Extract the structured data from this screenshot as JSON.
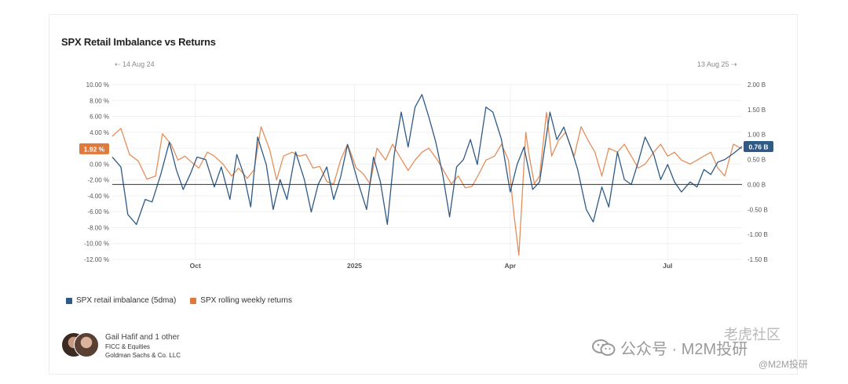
{
  "title": "SPX Retail Imbalance vs Returns",
  "range": {
    "start": "14 Aug 24",
    "end": "13 Aug 25"
  },
  "chart_data": {
    "type": "line",
    "title": "SPX Retail Imbalance vs Returns",
    "x_range": [
      "2024-08-14",
      "2025-08-13"
    ],
    "x_ticks": [
      "Oct",
      "2025",
      "Apr",
      "Jul"
    ],
    "y_left": {
      "ticks": [
        "10.00 %",
        "8.00 %",
        "6.00 %",
        "4.00 %",
        "2.00 %",
        "0.00 %",
        "-2.00 %",
        "-4.00 %",
        "-6.00 %",
        "-8.00 %",
        "-10.00 %",
        "-12.00 %"
      ],
      "ylim": [
        -12,
        10
      ]
    },
    "y_right": {
      "ticks": [
        "2.00 B",
        "1.50 B",
        "1.00 B",
        "0.50 B",
        "0.00 B",
        "-0.50 B",
        "-1.00 B",
        "-1.50 B"
      ],
      "ylim": [
        -1.5,
        2.0
      ]
    },
    "zero_line": "0.00 B",
    "series": [
      {
        "name": "SPX retail imbalance (5dma)",
        "color": "#2f5a86",
        "axis": "right",
        "last_label": "0.76 B",
        "points": [
          [
            "2024-08-14",
            0.55
          ],
          [
            "2024-08-19",
            0.35
          ],
          [
            "2024-08-23",
            -0.6
          ],
          [
            "2024-08-28",
            -0.8
          ],
          [
            "2024-09-02",
            -0.3
          ],
          [
            "2024-09-06",
            -0.35
          ],
          [
            "2024-09-11",
            0.2
          ],
          [
            "2024-09-16",
            0.85
          ],
          [
            "2024-09-20",
            0.3
          ],
          [
            "2024-09-24",
            -0.1
          ],
          [
            "2024-09-28",
            0.2
          ],
          [
            "2024-10-02",
            0.55
          ],
          [
            "2024-10-07",
            0.5
          ],
          [
            "2024-10-12",
            -0.05
          ],
          [
            "2024-10-16",
            0.35
          ],
          [
            "2024-10-21",
            -0.3
          ],
          [
            "2024-10-25",
            0.6
          ],
          [
            "2024-10-29",
            0.2
          ],
          [
            "2024-11-02",
            -0.45
          ],
          [
            "2024-11-06",
            0.95
          ],
          [
            "2024-11-11",
            0.4
          ],
          [
            "2024-11-15",
            -0.5
          ],
          [
            "2024-11-19",
            0.1
          ],
          [
            "2024-11-23",
            -0.3
          ],
          [
            "2024-11-28",
            0.65
          ],
          [
            "2024-12-03",
            0.1
          ],
          [
            "2024-12-07",
            -0.55
          ],
          [
            "2024-12-11",
            0.0
          ],
          [
            "2024-12-16",
            0.35
          ],
          [
            "2024-12-20",
            -0.3
          ],
          [
            "2024-12-24",
            0.15
          ],
          [
            "2024-12-28",
            0.8
          ],
          [
            "2025-01-03",
            0.05
          ],
          [
            "2025-01-08",
            -0.5
          ],
          [
            "2025-01-12",
            0.55
          ],
          [
            "2025-01-16",
            0.05
          ],
          [
            "2025-01-20",
            -0.8
          ],
          [
            "2025-01-24",
            0.6
          ],
          [
            "2025-01-28",
            1.45
          ],
          [
            "2025-02-01",
            0.75
          ],
          [
            "2025-02-05",
            1.55
          ],
          [
            "2025-02-09",
            1.8
          ],
          [
            "2025-02-13",
            1.35
          ],
          [
            "2025-02-17",
            0.85
          ],
          [
            "2025-02-21",
            0.2
          ],
          [
            "2025-02-25",
            -0.65
          ],
          [
            "2025-03-01",
            0.35
          ],
          [
            "2025-03-05",
            0.5
          ],
          [
            "2025-03-09",
            0.9
          ],
          [
            "2025-03-13",
            0.4
          ],
          [
            "2025-03-18",
            1.55
          ],
          [
            "2025-03-22",
            1.45
          ],
          [
            "2025-03-27",
            0.9
          ],
          [
            "2025-04-01",
            -0.15
          ],
          [
            "2025-04-05",
            0.4
          ],
          [
            "2025-04-09",
            0.75
          ],
          [
            "2025-04-14",
            -0.1
          ],
          [
            "2025-04-18",
            0.05
          ],
          [
            "2025-04-24",
            1.45
          ],
          [
            "2025-04-28",
            0.9
          ],
          [
            "2025-05-02",
            1.15
          ],
          [
            "2025-05-06",
            0.75
          ],
          [
            "2025-05-10",
            0.3
          ],
          [
            "2025-05-15",
            -0.5
          ],
          [
            "2025-05-19",
            -0.75
          ],
          [
            "2025-05-24",
            -0.05
          ],
          [
            "2025-05-28",
            -0.45
          ],
          [
            "2025-06-02",
            0.65
          ],
          [
            "2025-06-06",
            0.1
          ],
          [
            "2025-06-10",
            0.0
          ],
          [
            "2025-06-14",
            0.45
          ],
          [
            "2025-06-18",
            0.95
          ],
          [
            "2025-06-23",
            0.6
          ],
          [
            "2025-06-27",
            0.1
          ],
          [
            "2025-07-01",
            0.4
          ],
          [
            "2025-07-05",
            0.05
          ],
          [
            "2025-07-09",
            -0.15
          ],
          [
            "2025-07-14",
            0.05
          ],
          [
            "2025-07-18",
            -0.05
          ],
          [
            "2025-07-22",
            0.3
          ],
          [
            "2025-07-26",
            0.2
          ],
          [
            "2025-07-30",
            0.45
          ],
          [
            "2025-08-03",
            0.5
          ],
          [
            "2025-08-08",
            0.62
          ],
          [
            "2025-08-13",
            0.76
          ]
        ]
      },
      {
        "name": "SPX rolling weekly returns",
        "color": "#e07a3c",
        "axis": "left",
        "last_label": "1.92 %",
        "points": [
          [
            "2024-08-14",
            3.5
          ],
          [
            "2024-08-19",
            4.5
          ],
          [
            "2024-08-24",
            1.2
          ],
          [
            "2024-08-29",
            0.4
          ],
          [
            "2024-09-03",
            -1.9
          ],
          [
            "2024-09-08",
            -1.5
          ],
          [
            "2024-09-12",
            3.8
          ],
          [
            "2024-09-17",
            2.5
          ],
          [
            "2024-09-21",
            0.5
          ],
          [
            "2024-09-25",
            1.0
          ],
          [
            "2024-09-29",
            0.2
          ],
          [
            "2024-10-03",
            -0.5
          ],
          [
            "2024-10-08",
            1.5
          ],
          [
            "2024-10-12",
            1.0
          ],
          [
            "2024-10-17",
            0.0
          ],
          [
            "2024-10-22",
            -1.5
          ],
          [
            "2024-10-26",
            -0.5
          ],
          [
            "2024-10-31",
            -1.8
          ],
          [
            "2024-11-04",
            -0.7
          ],
          [
            "2024-11-08",
            4.7
          ],
          [
            "2024-11-13",
            1.8
          ],
          [
            "2024-11-17",
            -2.0
          ],
          [
            "2024-11-21",
            1.0
          ],
          [
            "2024-11-26",
            1.5
          ],
          [
            "2024-11-30",
            1.0
          ],
          [
            "2024-12-04",
            1.2
          ],
          [
            "2024-12-08",
            -0.5
          ],
          [
            "2024-12-12",
            -0.3
          ],
          [
            "2024-12-16",
            -2.2
          ],
          [
            "2024-12-20",
            -2.5
          ],
          [
            "2024-12-24",
            0.5
          ],
          [
            "2024-12-28",
            2.5
          ],
          [
            "2025-01-02",
            -0.5
          ],
          [
            "2025-01-06",
            -1.2
          ],
          [
            "2025-01-10",
            -2.5
          ],
          [
            "2025-01-14",
            2.0
          ],
          [
            "2025-01-19",
            0.5
          ],
          [
            "2025-01-23",
            2.5
          ],
          [
            "2025-01-27",
            1.0
          ],
          [
            "2025-02-01",
            -0.8
          ],
          [
            "2025-02-05",
            0.5
          ],
          [
            "2025-02-09",
            1.5
          ],
          [
            "2025-02-13",
            2.0
          ],
          [
            "2025-02-18",
            0.5
          ],
          [
            "2025-02-22",
            -1.0
          ],
          [
            "2025-02-26",
            -2.5
          ],
          [
            "2025-03-02",
            -1.5
          ],
          [
            "2025-03-06",
            -3.0
          ],
          [
            "2025-03-10",
            -2.8
          ],
          [
            "2025-03-14",
            -1.2
          ],
          [
            "2025-03-18",
            0.5
          ],
          [
            "2025-03-23",
            1.0
          ],
          [
            "2025-03-27",
            2.5
          ],
          [
            "2025-03-31",
            0.5
          ],
          [
            "2025-04-03",
            -6.0
          ],
          [
            "2025-04-06",
            -11.5
          ],
          [
            "2025-04-10",
            4.0
          ],
          [
            "2025-04-12",
            1.0
          ],
          [
            "2025-04-15",
            -2.5
          ],
          [
            "2025-04-18",
            -1.5
          ],
          [
            "2025-04-22",
            6.5
          ],
          [
            "2025-04-25",
            1.0
          ],
          [
            "2025-04-29",
            3.0
          ],
          [
            "2025-05-03",
            4.0
          ],
          [
            "2025-05-08",
            1.0
          ],
          [
            "2025-05-12",
            4.7
          ],
          [
            "2025-05-16",
            3.0
          ],
          [
            "2025-05-20",
            1.5
          ],
          [
            "2025-05-24",
            -1.5
          ],
          [
            "2025-05-28",
            2.0
          ],
          [
            "2025-06-02",
            1.5
          ],
          [
            "2025-06-06",
            2.5
          ],
          [
            "2025-06-10",
            1.0
          ],
          [
            "2025-06-14",
            -0.5
          ],
          [
            "2025-06-18",
            0.0
          ],
          [
            "2025-06-23",
            1.5
          ],
          [
            "2025-06-27",
            2.5
          ],
          [
            "2025-07-01",
            1.0
          ],
          [
            "2025-07-05",
            1.5
          ],
          [
            "2025-07-09",
            0.5
          ],
          [
            "2025-07-14",
            0.0
          ],
          [
            "2025-07-18",
            0.5
          ],
          [
            "2025-07-22",
            1.0
          ],
          [
            "2025-07-26",
            1.5
          ],
          [
            "2025-07-30",
            -0.5
          ],
          [
            "2025-08-03",
            -1.5
          ],
          [
            "2025-08-08",
            2.5
          ],
          [
            "2025-08-13",
            1.92
          ]
        ]
      }
    ],
    "legend": "bottom-left"
  },
  "legend": {
    "items": [
      {
        "label": "SPX retail imbalance (5dma)",
        "color": "#2f5a86"
      },
      {
        "label": "SPX rolling weekly returns",
        "color": "#e07a3c"
      }
    ]
  },
  "author": {
    "name": "Gail Hafif and 1 other",
    "line1": "FICC & Equities",
    "line2": "Goldman Sachs & Co. LLC"
  },
  "watermark": {
    "main": "公众号 · M2M投研",
    "top": "老虎社区",
    "bottom": "@M2M投研"
  }
}
